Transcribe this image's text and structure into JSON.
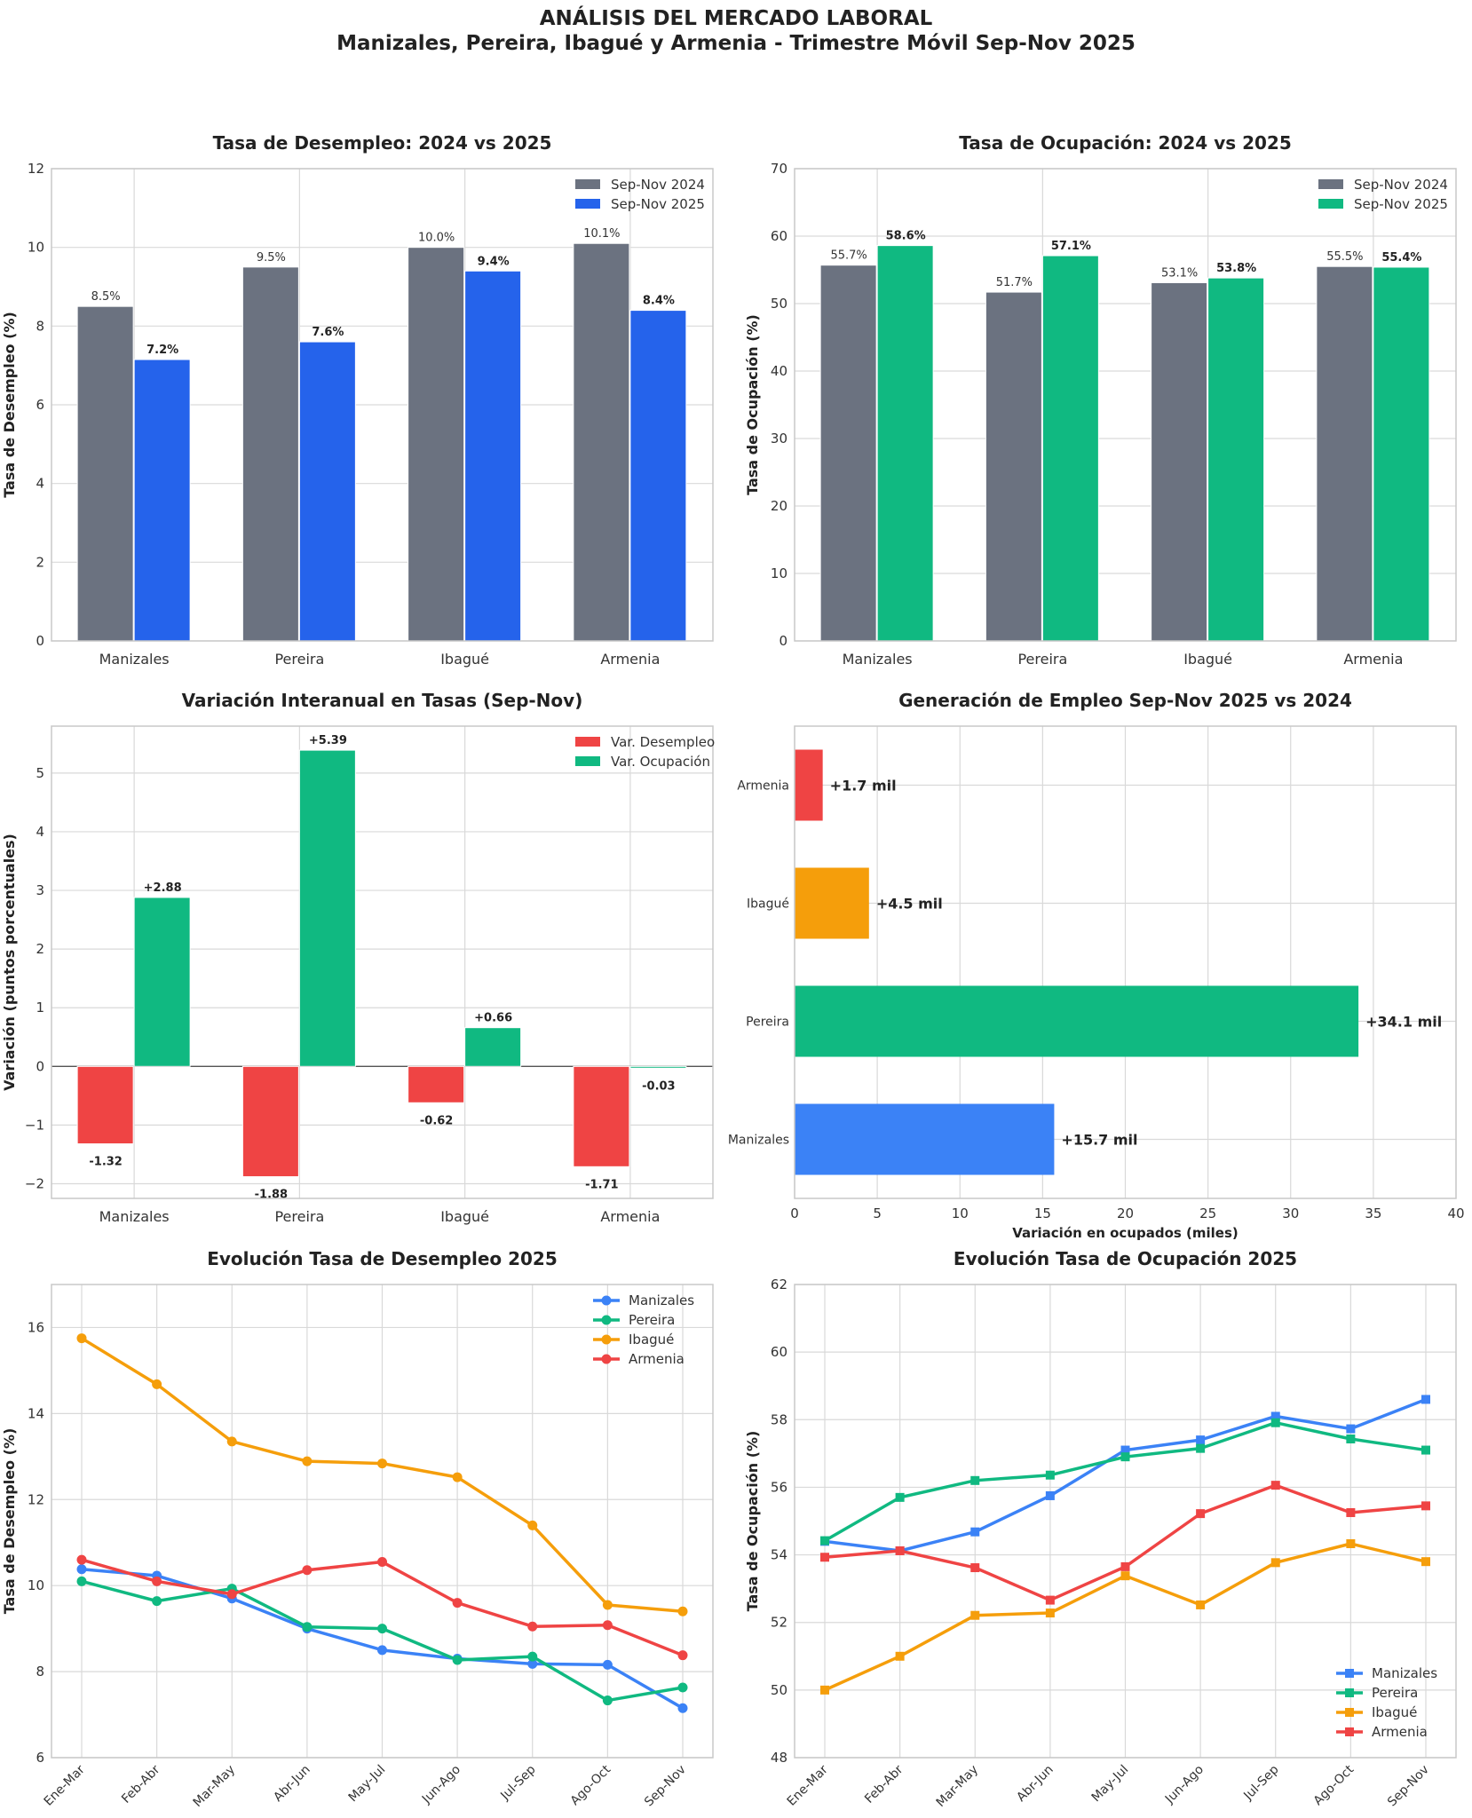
{
  "figure": {
    "title_line1": "ANÁLISIS DEL MERCADO LABORAL",
    "title_line2": "Manizales, Pereira, Ibagué y Armenia - Trimestre Móvil Sep-Nov 2025"
  },
  "colors": {
    "gray": "#6b7280",
    "blue_dark": "#2563eb",
    "blue": "#3b82f6",
    "green": "#10b981",
    "red": "#ef4444",
    "orange": "#f59e0b"
  },
  "chart_data": [
    {
      "id": "p1",
      "type": "bar",
      "title": "Tasa de Desempleo: 2024 vs 2025",
      "xlabel": "",
      "ylabel": "Tasa de Desempleo (%)",
      "categories": [
        "Manizales",
        "Pereira",
        "Ibagué",
        "Armenia"
      ],
      "ylim": [
        0,
        12
      ],
      "yticks": [
        0,
        2,
        4,
        6,
        8,
        10,
        12
      ],
      "legend_position": "top-right",
      "series": [
        {
          "name": "Sep-Nov 2024",
          "color": "#6b7280",
          "values": [
            8.5,
            9.5,
            10.0,
            10.1
          ],
          "labels": [
            "8.5%",
            "9.5%",
            "10.0%",
            "10.1%"
          ],
          "bold": false
        },
        {
          "name": "Sep-Nov 2025",
          "color": "#2563eb",
          "values": [
            7.15,
            7.6,
            9.4,
            8.4
          ],
          "labels": [
            "7.2%",
            "7.6%",
            "9.4%",
            "8.4%"
          ],
          "bold": true
        }
      ]
    },
    {
      "id": "p2",
      "type": "bar",
      "title": "Tasa de Ocupación: 2024 vs 2025",
      "xlabel": "",
      "ylabel": "Tasa de Ocupación (%)",
      "categories": [
        "Manizales",
        "Pereira",
        "Ibagué",
        "Armenia"
      ],
      "ylim": [
        0,
        70
      ],
      "yticks": [
        0,
        10,
        20,
        30,
        40,
        50,
        60,
        70
      ],
      "legend_position": "top-right",
      "series": [
        {
          "name": "Sep-Nov 2024",
          "color": "#6b7280",
          "values": [
            55.7,
            51.7,
            53.1,
            55.5
          ],
          "labels": [
            "55.7%",
            "51.7%",
            "53.1%",
            "55.5%"
          ],
          "bold": false
        },
        {
          "name": "Sep-Nov 2025",
          "color": "#10b981",
          "values": [
            58.6,
            57.1,
            53.8,
            55.4
          ],
          "labels": [
            "58.6%",
            "57.1%",
            "53.8%",
            "55.4%"
          ],
          "bold": true
        }
      ]
    },
    {
      "id": "p3",
      "type": "bar",
      "title": "Variación Interanual en Tasas (Sep-Nov)",
      "xlabel": "",
      "ylabel": "Variación (puntos porcentuales)",
      "categories": [
        "Manizales",
        "Pereira",
        "Ibagué",
        "Armenia"
      ],
      "ylim": [
        -2.25,
        5.8
      ],
      "yticks": [
        -2,
        -1,
        0,
        1,
        2,
        3,
        4,
        5
      ],
      "ytick_labels": [
        "−2",
        "−1",
        "0",
        "1",
        "2",
        "3",
        "4",
        "5"
      ],
      "legend_position": "top-right",
      "series": [
        {
          "name": "Var. Desempleo",
          "color": "#ef4444",
          "values": [
            -1.32,
            -1.88,
            -0.62,
            -1.71
          ],
          "labels": [
            "-1.32",
            "-1.88",
            "-0.62",
            "-1.71"
          ],
          "bold": true
        },
        {
          "name": "Var. Ocupación",
          "color": "#10b981",
          "values": [
            2.88,
            5.39,
            0.66,
            -0.03
          ],
          "labels": [
            "+2.88",
            "+5.39",
            "+0.66",
            "-0.03"
          ],
          "bold": true
        }
      ]
    },
    {
      "id": "p4",
      "type": "barh",
      "title": "Generación de Empleo Sep-Nov 2025 vs 2024",
      "xlabel": "Variación en ocupados (miles)",
      "ylabel": "",
      "categories": [
        "Manizales",
        "Pereira",
        "Ibagué",
        "Armenia"
      ],
      "values": [
        15.7,
        34.1,
        4.5,
        1.7
      ],
      "labels": [
        "+15.7 mil",
        "+34.1 mil",
        "+4.5 mil",
        "+1.7 mil"
      ],
      "bar_colors": [
        "#3b82f6",
        "#10b981",
        "#f59e0b",
        "#ef4444"
      ],
      "xlim": [
        0,
        40
      ],
      "xticks": [
        0,
        5,
        10,
        15,
        20,
        25,
        30,
        35,
        40
      ]
    },
    {
      "id": "p5",
      "type": "line",
      "title": "Evolución Tasa de Desempleo 2025",
      "xlabel": "",
      "ylabel": "Tasa de Desempleo (%)",
      "x": [
        "Ene-Mar",
        "Feb-Abr",
        "Mar-May",
        "Abr-Jun",
        "May-Jul",
        "Jun-Ago",
        "Jul-Sep",
        "Ago-Oct",
        "Sep-Nov"
      ],
      "ylim": [
        6,
        17
      ],
      "yticks": [
        6,
        8,
        10,
        12,
        14,
        16
      ],
      "marker": "circle",
      "legend_position": "top-right",
      "series": [
        {
          "name": "Manizales",
          "color": "#3b82f6",
          "values": [
            10.38,
            10.23,
            9.7,
            9.0,
            8.5,
            8.3,
            8.18,
            8.16,
            7.15
          ]
        },
        {
          "name": "Pereira",
          "color": "#10b981",
          "values": [
            10.1,
            9.64,
            9.93,
            9.04,
            9.0,
            8.27,
            8.35,
            7.33,
            7.63
          ]
        },
        {
          "name": "Ibagué",
          "color": "#f59e0b",
          "values": [
            15.75,
            14.68,
            13.35,
            12.89,
            12.84,
            12.52,
            11.4,
            9.55,
            9.4
          ]
        },
        {
          "name": "Armenia",
          "color": "#ef4444",
          "values": [
            10.6,
            10.1,
            9.8,
            10.36,
            10.55,
            9.6,
            9.05,
            9.08,
            8.38
          ]
        }
      ]
    },
    {
      "id": "p6",
      "type": "line",
      "title": "Evolución Tasa de Ocupación 2025",
      "xlabel": "",
      "ylabel": "Tasa de Ocupación (%)",
      "x": [
        "Ene-Mar",
        "Feb-Abr",
        "Mar-May",
        "Abr-Jun",
        "May-Jul",
        "Jun-Ago",
        "Jul-Sep",
        "Ago-Oct",
        "Sep-Nov"
      ],
      "ylim": [
        48,
        62
      ],
      "yticks": [
        48,
        50,
        52,
        54,
        56,
        58,
        60,
        62
      ],
      "marker": "square",
      "legend_position": "bottom-right",
      "series": [
        {
          "name": "Manizales",
          "color": "#3b82f6",
          "values": [
            54.4,
            54.12,
            54.68,
            55.75,
            57.1,
            57.4,
            58.1,
            57.73,
            58.6
          ]
        },
        {
          "name": "Pereira",
          "color": "#10b981",
          "values": [
            54.42,
            55.7,
            56.2,
            56.36,
            56.9,
            57.15,
            57.91,
            57.43,
            57.1
          ]
        },
        {
          "name": "Ibagué",
          "color": "#f59e0b",
          "values": [
            50.0,
            51.0,
            52.21,
            52.28,
            53.38,
            52.52,
            53.77,
            54.33,
            53.8
          ]
        },
        {
          "name": "Armenia",
          "color": "#ef4444",
          "values": [
            53.93,
            54.12,
            53.62,
            52.66,
            53.65,
            55.22,
            56.06,
            55.25,
            55.45
          ]
        }
      ]
    }
  ]
}
